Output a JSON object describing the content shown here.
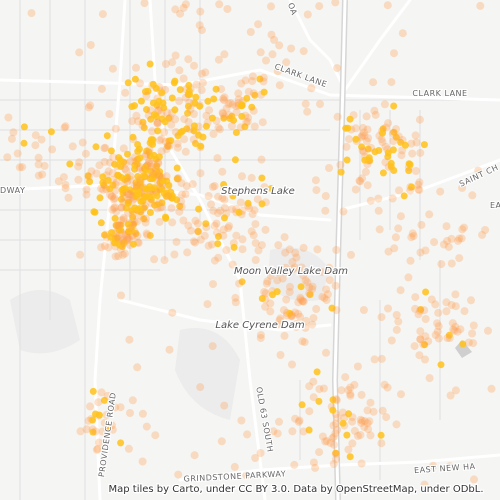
{
  "map": {
    "places": [
      "Stephens Lake",
      "Moon Valley Lake Dam",
      "Lake Cyrene Dam"
    ],
    "roads": [
      "CLARK LANE",
      "CLARK LANE",
      "SAINT CH",
      "DWAY",
      "EA",
      "OLD 63 SOUTH",
      "PROVIDENCE ROAD",
      "GRINDSTONE PARKWAY",
      "EAST NEW HA",
      "OA"
    ],
    "attribution": "Map tiles by Carto, under CC BY 3.0. Data by OpenStreetMap, under ODbL."
  }
}
